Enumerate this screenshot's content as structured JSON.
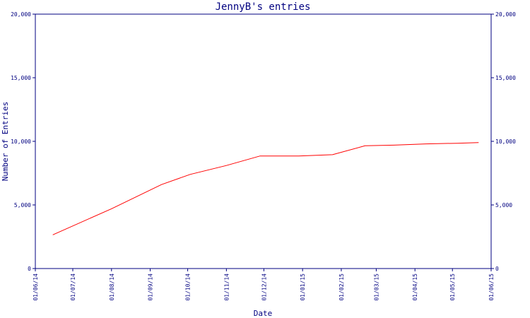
{
  "chart_data": {
    "type": "line",
    "title": "JennyB's entries",
    "xlabel": "Date",
    "ylabel": "Number of Entries",
    "x_tick_labels": [
      "01/06/14",
      "01/07/14",
      "01/08/14",
      "01/09/14",
      "01/10/14",
      "01/11/14",
      "01/12/14",
      "01/01/15",
      "01/02/15",
      "01/03/15",
      "01/04/15",
      "01/05/15",
      "01/06/15"
    ],
    "y_tick_labels": [
      "0",
      "5,000",
      "10,000",
      "15,000",
      "20,000"
    ],
    "y_tick_values": [
      0,
      5000,
      10000,
      15000,
      20000
    ],
    "xlim": [
      "2014-06-01",
      "2015-06-01"
    ],
    "ylim": [
      0,
      20000
    ],
    "grid": false,
    "right_axis": true,
    "series": [
      {
        "color": "#ff0000",
        "points": [
          {
            "x": "2014-06-15",
            "y": 2650
          },
          {
            "x": "2014-08-01",
            "y": 4700
          },
          {
            "x": "2014-09-10",
            "y": 6600
          },
          {
            "x": "2014-10-03",
            "y": 7400
          },
          {
            "x": "2014-11-01",
            "y": 8100
          },
          {
            "x": "2014-11-28",
            "y": 8850
          },
          {
            "x": "2014-12-29",
            "y": 8850
          },
          {
            "x": "2015-01-25",
            "y": 8950
          },
          {
            "x": "2015-02-20",
            "y": 9650
          },
          {
            "x": "2015-03-15",
            "y": 9700
          },
          {
            "x": "2015-04-10",
            "y": 9800
          },
          {
            "x": "2015-05-05",
            "y": 9850
          },
          {
            "x": "2015-05-22",
            "y": 9900
          }
        ]
      }
    ]
  },
  "colors": {
    "axis": "#000080",
    "text": "#000080",
    "line": "#ff0000",
    "background": "#ffffff"
  }
}
